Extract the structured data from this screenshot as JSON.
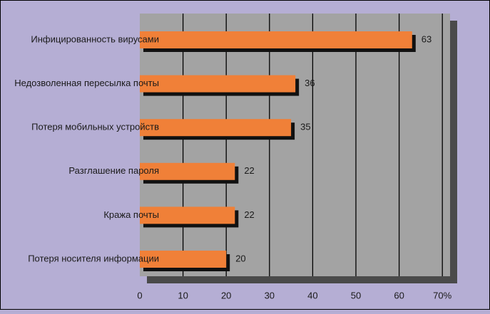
{
  "chart_data": {
    "type": "bar",
    "orientation": "horizontal",
    "categories": [
      "Инфицированность вирусами",
      "Недозволенная пересылка почты",
      "Потеря мобильных устройств",
      "Разглашение пароля",
      "Кража почты",
      "Потеря носителя информации"
    ],
    "values": [
      63,
      36,
      35,
      22,
      22,
      20
    ],
    "data_labels": [
      "63",
      "36",
      "35",
      "22",
      "22",
      "20"
    ],
    "xlim": [
      0,
      70
    ],
    "x_ticks": [
      "0",
      "10",
      "20",
      "30",
      "40",
      "50",
      "60",
      "70%"
    ],
    "grid": true,
    "colors": {
      "background": "#b5aed4",
      "plot_area": "#a3a3a3",
      "plot_shadow": "#4a4a4a",
      "bar": "#f08038",
      "bar_shadow": "#111111",
      "grid": "#000000"
    }
  }
}
